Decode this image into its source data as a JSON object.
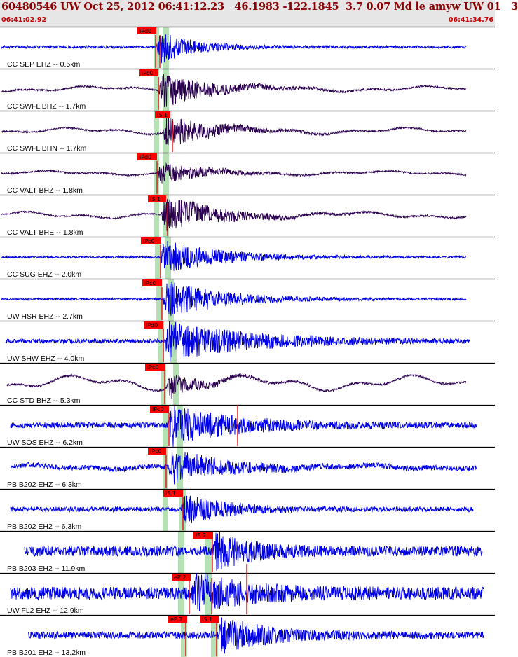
{
  "header": {
    "title": "60480546 UW Oct 25, 2012 06:41:12.23   46.1983 -122.1845  3.7 0.07 Md le amyw UW 01   3",
    "time_start": "06:41:02.92",
    "time_end": "06:41:34.76"
  },
  "colors": {
    "trace_blue": "#0000e6",
    "trace_dark": "#2b0050",
    "pick_box": "#ff0000",
    "pick_line": "#e00000",
    "window_band": "#a8dca8",
    "divider": "#000000"
  },
  "traces": [
    {
      "label": "CC SEP EHZ -- 0.5km",
      "color": "blue",
      "picks": [
        "iPd0"
      ]
    },
    {
      "label": "CC SWFL BHZ -- 1.7km",
      "color": "dark",
      "picks": [
        "iPc0"
      ]
    },
    {
      "label": "CC SWFL BHN -- 1.7km",
      "color": "dark",
      "picks": [
        "iS 1"
      ]
    },
    {
      "label": "CC VALT BHZ -- 1.8km",
      "color": "dark",
      "picks": [
        "iPd0"
      ]
    },
    {
      "label": "CC VALT BHE -- 1.8km",
      "color": "dark",
      "picks": [
        "iS 1"
      ]
    },
    {
      "label": "CC SUG EHZ -- 2.0km",
      "color": "blue",
      "picks": [
        "iPc0"
      ]
    },
    {
      "label": "UW HSR EHZ -- 2.7km",
      "color": "blue",
      "picks": [
        "iPc0"
      ]
    },
    {
      "label": "UW SHW EHZ -- 4.0km",
      "color": "blue",
      "picks": [
        "iPd0"
      ]
    },
    {
      "label": "CC STD BHZ -- 5.3km",
      "color": "dark",
      "picks": [
        "iPc0"
      ]
    },
    {
      "label": "UW SOS EHZ -- 6.2km",
      "color": "blue",
      "picks": [
        "iPc0"
      ]
    },
    {
      "label": "PB B202 EHZ -- 6.3km",
      "color": "blue",
      "picks": [
        "iPc0"
      ]
    },
    {
      "label": "PB B202 EH2 -- 6.3km",
      "color": "blue",
      "picks": [
        "iS 1"
      ]
    },
    {
      "label": "PB B203 EH2 -- 11.9km",
      "color": "blue",
      "picks": [
        "iS 2"
      ]
    },
    {
      "label": "UW FL2 EHZ -- 12.9km",
      "color": "blue",
      "picks": [
        "eP 2"
      ]
    },
    {
      "label": "PB B201 EH2 -- 13.2km",
      "color": "blue",
      "picks": [
        "eP 2",
        "iS 1"
      ]
    }
  ]
}
